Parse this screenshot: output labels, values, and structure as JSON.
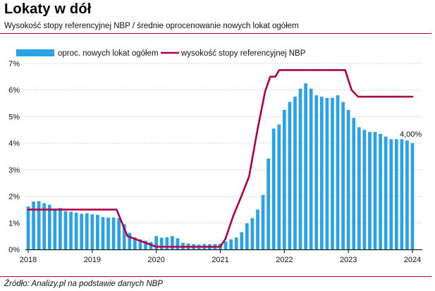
{
  "header": {
    "title": "Lokaty w dół",
    "subtitle": "Wysokość stopy referencyjnej NBP / średnie oprocenowanie nowych lokat ogółem"
  },
  "footer": {
    "source": "Źródło: Analizy.pl na podstawie danych NBP"
  },
  "colors": {
    "bars": "#29a3e6",
    "line": "#b0004a",
    "grid": "#c9c9c9",
    "axis": "#000000"
  },
  "chart_data": {
    "type": "bar+line",
    "title": "Lokaty w dół",
    "x_tick_labels": [
      "2018",
      "2019",
      "2020",
      "2021",
      "2022",
      "2023",
      "2024"
    ],
    "y_tick_labels": [
      "0%",
      "1%",
      "2%",
      "3%",
      "4%",
      "5%",
      "6%",
      "7%"
    ],
    "ylim": [
      0,
      7
    ],
    "grid": true,
    "legend": {
      "position": "top",
      "bar_label": "oproc. nowych lokat ogółem",
      "line_label": "wysokość stopy referencyjnej NBP"
    },
    "annotation": "4,00%",
    "x_start": 2018.0,
    "x_end": 2024.0,
    "series": [
      {
        "name": "oproc. nowych lokat ogółem",
        "type": "bar",
        "x": [
          2018.0,
          2018.0833,
          2018.1667,
          2018.25,
          2018.3333,
          2018.4167,
          2018.5,
          2018.5833,
          2018.6667,
          2018.75,
          2018.8333,
          2018.9167,
          2019.0,
          2019.0833,
          2019.1667,
          2019.25,
          2019.3333,
          2019.4167,
          2019.5,
          2019.5833,
          2019.6667,
          2019.75,
          2019.8333,
          2019.9167,
          2020.0,
          2020.0833,
          2020.1667,
          2020.25,
          2020.3333,
          2020.4167,
          2020.5,
          2020.5833,
          2020.6667,
          2020.75,
          2020.8333,
          2020.9167,
          2021.0,
          2021.0833,
          2021.1667,
          2021.25,
          2021.3333,
          2021.4167,
          2021.5,
          2021.5833,
          2021.6667,
          2021.75,
          2021.8333,
          2021.9167,
          2022.0,
          2022.0833,
          2022.1667,
          2022.25,
          2022.3333,
          2022.4167,
          2022.5,
          2022.5833,
          2022.6667,
          2022.75,
          2022.8333,
          2022.9167,
          2023.0,
          2023.0833,
          2023.1667,
          2023.25,
          2023.3333,
          2023.4167,
          2023.5,
          2023.5833,
          2023.6667,
          2023.75,
          2023.8333,
          2023.9167,
          2024.0
        ],
        "values": [
          1.62,
          1.8,
          1.82,
          1.74,
          1.68,
          1.54,
          1.56,
          1.44,
          1.42,
          1.38,
          1.34,
          1.36,
          1.32,
          1.3,
          1.22,
          1.2,
          1.2,
          1.18,
          0.95,
          0.62,
          0.45,
          0.38,
          0.33,
          0.28,
          0.5,
          0.44,
          0.46,
          0.5,
          0.42,
          0.25,
          0.22,
          0.2,
          0.18,
          0.2,
          0.2,
          0.2,
          0.22,
          0.3,
          0.38,
          0.45,
          0.65,
          0.98,
          1.18,
          1.5,
          2.05,
          3.42,
          4.55,
          4.7,
          5.25,
          5.55,
          5.75,
          6.05,
          6.25,
          6.05,
          5.8,
          5.75,
          5.7,
          5.7,
          5.8,
          5.55,
          5.25,
          4.95,
          4.6,
          4.5,
          4.42,
          4.42,
          4.35,
          4.25,
          4.15,
          4.15,
          4.15,
          4.1,
          4.0
        ]
      },
      {
        "name": "wysokość stopy referencyjnej NBP",
        "type": "line",
        "x": [
          2018.0,
          2019.38,
          2019.55,
          2020.0,
          2020.5,
          2020.95,
          2021.0,
          2021.08,
          2021.2,
          2021.32,
          2021.45,
          2021.58,
          2021.7,
          2021.78,
          2021.86,
          2021.92,
          2022.0,
          2022.08,
          2022.5,
          2022.95,
          2023.05,
          2023.15,
          2023.5,
          2024.0
        ],
        "values": [
          1.5,
          1.5,
          0.5,
          0.1,
          0.1,
          0.1,
          0.1,
          0.4,
          1.25,
          1.95,
          2.75,
          4.5,
          5.95,
          6.5,
          6.5,
          6.75,
          6.75,
          6.75,
          6.75,
          6.75,
          6.0,
          5.75,
          5.75,
          5.75
        ]
      }
    ]
  }
}
